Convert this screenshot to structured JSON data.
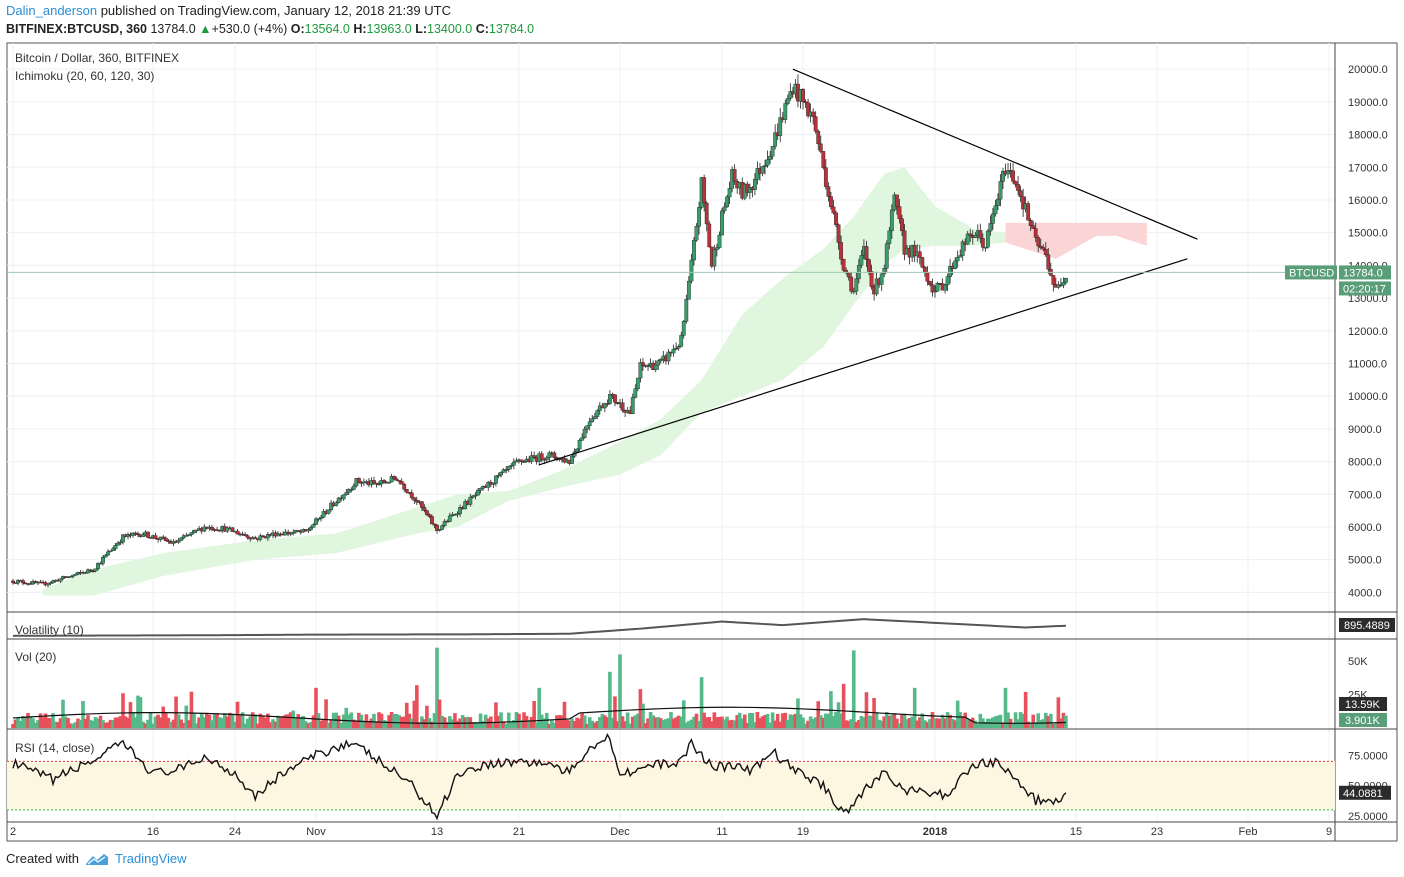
{
  "header": {
    "author": "Dalin_anderson",
    "published_text": "published on TradingView.com, January 12, 2018 21:39 UTC",
    "symbol": "BITFINEX:BTCUSD, 360",
    "last": "13784.0",
    "change_arrow": "▲",
    "change": "+530.0 (+4%)",
    "o_label": "O:",
    "o_value": "13564.0",
    "h_label": "H:",
    "h_value": "13963.0",
    "l_label": "L:",
    "l_value": "13400.0",
    "c_label": "C:",
    "c_value": "13784.0"
  },
  "footer": {
    "created_with": "Created with",
    "brand": "TradingView"
  },
  "colors": {
    "up": "#3b9c6b",
    "down": "#b8323a",
    "wick": "#222222",
    "cloud_bull": "#dff5dd",
    "cloud_bear": "#fbd3d3",
    "vol_up": "#55b98a",
    "vol_down": "#e8515b",
    "rsi_fill": "#fdf6e1",
    "rsi_upper": "#e23b3b",
    "rsi_lower": "#3ac43a",
    "label_green": "#5a9e79",
    "label_dark": "#2b2b2b",
    "grid": "#edf0f3",
    "accent": "#2a8fd6"
  },
  "chart_data": [
    {
      "type": "candlestick",
      "title": "Bitcoin / Dollar, 360, BITFINEX",
      "indicator": "Ichimoku (20, 60, 120, 30)",
      "symbol_tag": "BTCUSD",
      "last_price": 13784.0,
      "last_price_label": "13784.0",
      "countdown": "02:20:17",
      "ylim": [
        3400,
        20800
      ],
      "y_ticks": [
        4000,
        5000,
        6000,
        7000,
        8000,
        9000,
        10000,
        11000,
        12000,
        13000,
        14000,
        15000,
        16000,
        17000,
        18000,
        19000,
        20000
      ],
      "x_ticks": [
        "2",
        "16",
        "24",
        "Nov",
        "13",
        "21",
        "Dec",
        "11",
        "19",
        "2018",
        "15",
        "23",
        "Feb",
        "9"
      ],
      "x_tick_date_index": [
        0,
        14,
        22,
        30,
        42,
        50,
        60,
        70,
        78,
        91,
        105,
        113,
        122,
        130
      ],
      "x_date_range_days": [
        0,
        130
      ],
      "bar_interval_hours": 6,
      "price_path": [
        {
          "day": 0,
          "price": 4350
        },
        {
          "day": 3,
          "price": 4250
        },
        {
          "day": 8,
          "price": 4700
        },
        {
          "day": 11,
          "price": 5700
        },
        {
          "day": 13,
          "price": 5800
        },
        {
          "day": 16,
          "price": 5500
        },
        {
          "day": 19,
          "price": 6000
        },
        {
          "day": 21,
          "price": 5950
        },
        {
          "day": 24,
          "price": 5650
        },
        {
          "day": 26,
          "price": 5800
        },
        {
          "day": 29,
          "price": 5850
        },
        {
          "day": 32,
          "price": 6800
        },
        {
          "day": 34,
          "price": 7400
        },
        {
          "day": 36,
          "price": 7300
        },
        {
          "day": 38,
          "price": 7500
        },
        {
          "day": 40,
          "price": 6800
        },
        {
          "day": 42,
          "price": 5900
        },
        {
          "day": 44,
          "price": 6500
        },
        {
          "day": 47,
          "price": 7300
        },
        {
          "day": 50,
          "price": 8000
        },
        {
          "day": 53,
          "price": 8200
        },
        {
          "day": 55,
          "price": 8000
        },
        {
          "day": 57,
          "price": 9300
        },
        {
          "day": 59,
          "price": 10000
        },
        {
          "day": 61,
          "price": 9500
        },
        {
          "day": 62,
          "price": 10900
        },
        {
          "day": 64,
          "price": 11000
        },
        {
          "day": 66,
          "price": 11700
        },
        {
          "day": 67,
          "price": 14000
        },
        {
          "day": 68,
          "price": 16500
        },
        {
          "day": 69,
          "price": 14000
        },
        {
          "day": 70,
          "price": 15500
        },
        {
          "day": 71,
          "price": 16700
        },
        {
          "day": 72,
          "price": 16200
        },
        {
          "day": 73,
          "price": 16500
        },
        {
          "day": 75,
          "price": 17700
        },
        {
          "day": 77,
          "price": 19500
        },
        {
          "day": 79,
          "price": 18500
        },
        {
          "day": 80,
          "price": 17000
        },
        {
          "day": 81,
          "price": 15500
        },
        {
          "day": 82,
          "price": 14000
        },
        {
          "day": 83,
          "price": 13200
        },
        {
          "day": 84,
          "price": 14500
        },
        {
          "day": 85,
          "price": 13200
        },
        {
          "day": 86,
          "price": 14000
        },
        {
          "day": 87,
          "price": 16000
        },
        {
          "day": 88,
          "price": 14500
        },
        {
          "day": 89,
          "price": 14400
        },
        {
          "day": 90,
          "price": 13800
        },
        {
          "day": 91,
          "price": 13200
        },
        {
          "day": 92,
          "price": 13500
        },
        {
          "day": 93,
          "price": 14200
        },
        {
          "day": 94,
          "price": 14700
        },
        {
          "day": 95,
          "price": 15000
        },
        {
          "day": 96,
          "price": 14600
        },
        {
          "day": 97,
          "price": 15800
        },
        {
          "day": 98,
          "price": 17000
        },
        {
          "day": 99,
          "price": 16600
        },
        {
          "day": 100,
          "price": 15700
        },
        {
          "day": 101,
          "price": 14700
        },
        {
          "day": 102,
          "price": 14300
        },
        {
          "day": 103,
          "price": 13200
        },
        {
          "day": 104,
          "price": 13784
        }
      ],
      "ichimoku_cloud_bullish": [
        {
          "day": 3,
          "top": 4100,
          "bottom": 3900
        },
        {
          "day": 8,
          "top": 4700,
          "bottom": 3900
        },
        {
          "day": 15,
          "top": 5200,
          "bottom": 4500
        },
        {
          "day": 24,
          "top": 5600,
          "bottom": 5000
        },
        {
          "day": 32,
          "top": 5800,
          "bottom": 5200
        },
        {
          "day": 40,
          "top": 6600,
          "bottom": 5800
        },
        {
          "day": 44,
          "top": 7000,
          "bottom": 6000
        },
        {
          "day": 49,
          "top": 7100,
          "bottom": 6800
        },
        {
          "day": 54,
          "top": 7700,
          "bottom": 7200
        },
        {
          "day": 60,
          "top": 8600,
          "bottom": 7600
        },
        {
          "day": 64,
          "top": 9300,
          "bottom": 8200
        },
        {
          "day": 68,
          "top": 10500,
          "bottom": 9500
        },
        {
          "day": 72,
          "top": 12500,
          "bottom": 10000
        },
        {
          "day": 76,
          "top": 13600,
          "bottom": 10500
        },
        {
          "day": 80,
          "top": 14500,
          "bottom": 11500
        },
        {
          "day": 83,
          "top": 15500,
          "bottom": 12800
        },
        {
          "day": 86,
          "top": 16800,
          "bottom": 14000
        },
        {
          "day": 88,
          "top": 17000,
          "bottom": 14500
        },
        {
          "day": 91,
          "top": 15800,
          "bottom": 14600
        },
        {
          "day": 95,
          "top": 15100,
          "bottom": 14600
        },
        {
          "day": 98,
          "top": 15000,
          "bottom": 14700
        }
      ],
      "ichimoku_cloud_bearish": [
        {
          "day": 98,
          "top": 15300,
          "bottom": 14700
        },
        {
          "day": 103,
          "top": 15300,
          "bottom": 14200
        },
        {
          "day": 107,
          "top": 15300,
          "bottom": 14900
        },
        {
          "day": 109,
          "top": 15300,
          "bottom": 14900
        },
        {
          "day": 112,
          "top": 15300,
          "bottom": 14600
        }
      ],
      "trendlines": [
        {
          "from": {
            "day": 77,
            "price": 20000
          },
          "to": {
            "day": 117,
            "price": 14800
          }
        },
        {
          "from": {
            "day": 52,
            "price": 7900
          },
          "to": {
            "day": 116,
            "price": 14200
          }
        }
      ]
    },
    {
      "type": "line",
      "title": "Volatility (10)",
      "last_value_label": "895.4889",
      "points": [
        {
          "day": 0,
          "value": 0.2
        },
        {
          "day": 20,
          "value": 0.3
        },
        {
          "day": 30,
          "value": 0.4
        },
        {
          "day": 45,
          "value": 0.45
        },
        {
          "day": 55,
          "value": 0.55
        },
        {
          "day": 62,
          "value": 1.4
        },
        {
          "day": 70,
          "value": 2.6
        },
        {
          "day": 76,
          "value": 2.0
        },
        {
          "day": 84,
          "value": 3.0
        },
        {
          "day": 92,
          "value": 2.3
        },
        {
          "day": 100,
          "value": 1.6
        },
        {
          "day": 104,
          "value": 1.9
        }
      ]
    },
    {
      "type": "bar",
      "title": "Vol (20)",
      "y_ticks_label": [
        "50K",
        "25K"
      ],
      "y_ticks": [
        50000,
        25000
      ],
      "ylim": [
        0,
        65000
      ],
      "ma_label": "13.59K",
      "last_label": "3.901K",
      "spikes": [
        {
          "day": 42,
          "value": 60000
        },
        {
          "day": 40,
          "value": 32000
        },
        {
          "day": 60,
          "value": 55000
        },
        {
          "day": 59,
          "value": 42000
        },
        {
          "day": 83,
          "value": 58000
        },
        {
          "day": 82,
          "value": 33000
        },
        {
          "day": 68,
          "value": 38000
        },
        {
          "day": 30,
          "value": 30000
        },
        {
          "day": 52,
          "value": 30000
        },
        {
          "day": 11,
          "value": 26000
        },
        {
          "day": 89,
          "value": 30000
        },
        {
          "day": 98,
          "value": 30000
        }
      ]
    },
    {
      "type": "line",
      "title": "RSI (14, close)",
      "y_ticks": [
        75,
        50,
        25
      ],
      "y_ticks_label": [
        "75.0000",
        "50.0000",
        "25.0000"
      ],
      "band": [
        30,
        70
      ],
      "ylim": [
        20,
        95
      ],
      "last_value": 44.0881,
      "last_value_label": "44.0881",
      "points": [
        {
          "day": 0,
          "value": 68
        },
        {
          "day": 4,
          "value": 55
        },
        {
          "day": 9,
          "value": 75
        },
        {
          "day": 11,
          "value": 85
        },
        {
          "day": 14,
          "value": 60
        },
        {
          "day": 17,
          "value": 64
        },
        {
          "day": 19,
          "value": 74
        },
        {
          "day": 22,
          "value": 60
        },
        {
          "day": 24,
          "value": 42
        },
        {
          "day": 27,
          "value": 62
        },
        {
          "day": 30,
          "value": 75
        },
        {
          "day": 33,
          "value": 85
        },
        {
          "day": 35,
          "value": 78
        },
        {
          "day": 37,
          "value": 65
        },
        {
          "day": 39,
          "value": 55
        },
        {
          "day": 41,
          "value": 35
        },
        {
          "day": 42,
          "value": 25
        },
        {
          "day": 44,
          "value": 60
        },
        {
          "day": 47,
          "value": 68
        },
        {
          "day": 50,
          "value": 70
        },
        {
          "day": 53,
          "value": 68
        },
        {
          "day": 55,
          "value": 60
        },
        {
          "day": 57,
          "value": 82
        },
        {
          "day": 59,
          "value": 90
        },
        {
          "day": 60,
          "value": 60
        },
        {
          "day": 63,
          "value": 66
        },
        {
          "day": 66,
          "value": 70
        },
        {
          "day": 67,
          "value": 85
        },
        {
          "day": 69,
          "value": 66
        },
        {
          "day": 71,
          "value": 66
        },
        {
          "day": 73,
          "value": 62
        },
        {
          "day": 75,
          "value": 78
        },
        {
          "day": 77,
          "value": 64
        },
        {
          "day": 80,
          "value": 50
        },
        {
          "day": 82,
          "value": 27
        },
        {
          "day": 84,
          "value": 45
        },
        {
          "day": 86,
          "value": 62
        },
        {
          "day": 88,
          "value": 46
        },
        {
          "day": 90,
          "value": 44
        },
        {
          "day": 92,
          "value": 42
        },
        {
          "day": 95,
          "value": 68
        },
        {
          "day": 97,
          "value": 70
        },
        {
          "day": 99,
          "value": 55
        },
        {
          "day": 101,
          "value": 38
        },
        {
          "day": 103,
          "value": 36
        },
        {
          "day": 104,
          "value": 44.0881
        }
      ]
    }
  ]
}
